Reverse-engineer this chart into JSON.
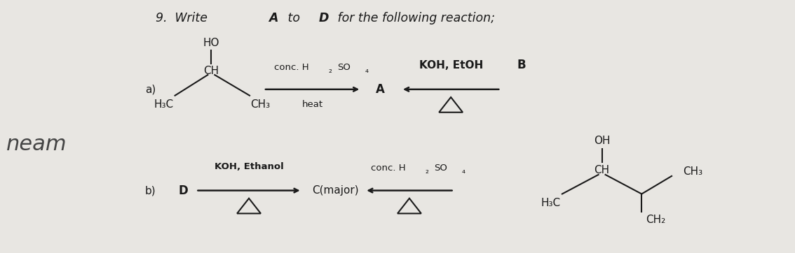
{
  "bg_color": "#e8e6e2",
  "text_color": "#1a1a1a",
  "title": "9.  Write ",
  "title_bold1": "A",
  "title_mid": " to ",
  "title_bold2": "D",
  "title_end": " for the following reaction;",
  "fs_base": 11,
  "fs_small": 9,
  "fs_title": 12.5
}
